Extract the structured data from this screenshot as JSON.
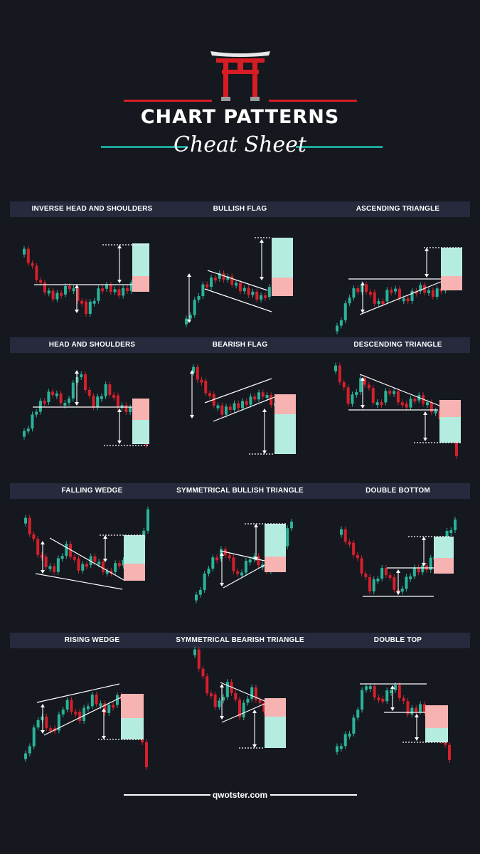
{
  "header": {
    "title": "CHART PATTERNS",
    "subtitle": "Cheat Sheet",
    "logo_icon": "torii-gate-icon"
  },
  "colors": {
    "background": "#15181f",
    "band": "#262a3c",
    "bull": "#2bb39a",
    "bear": "#d5202c",
    "line": "#ffffff",
    "accent_red": "#d71c24",
    "accent_teal": "#1fa59a",
    "target_green": "#b5ece0",
    "target_red": "#f6b3b2"
  },
  "patterns": [
    {
      "name": "INVERSE HEAD AND SHOULDERS",
      "kind": "inverse-head-and-shoulders"
    },
    {
      "name": "BULLISH FLAG",
      "kind": "bullish-flag"
    },
    {
      "name": "ASCENDING TRIANGLE",
      "kind": "ascending-triangle"
    },
    {
      "name": "HEAD AND SHOULDERS",
      "kind": "head-and-shoulders"
    },
    {
      "name": "BEARISH FLAG",
      "kind": "bearish-flag"
    },
    {
      "name": "DESCENDING TRIANGLE",
      "kind": "descending-triangle"
    },
    {
      "name": "FALLING WEDGE",
      "kind": "falling-wedge"
    },
    {
      "name": "SYMMETRICAL BULLISH  TRIANGLE",
      "kind": "symmetrical-bullish-triangle"
    },
    {
      "name": "DOUBLE BOTTOM",
      "kind": "double-bottom"
    },
    {
      "name": "RISING WEDGE",
      "kind": "rising-wedge"
    },
    {
      "name": "SYMMETRICAL  BEARISH TRIANGLE",
      "kind": "symmetrical-bearish-triangle"
    },
    {
      "name": "DOUBLE  TOP",
      "kind": "double-top"
    }
  ],
  "footer": {
    "text": "qwotster.com"
  }
}
